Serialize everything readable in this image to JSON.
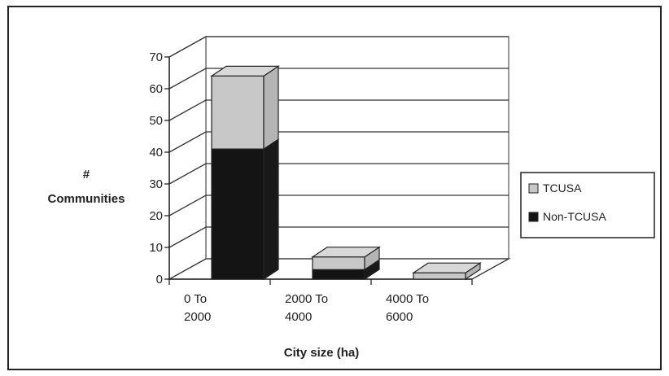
{
  "chart_data": {
    "type": "bar",
    "stacked": true,
    "three_d": true,
    "categories": [
      [
        "0 To",
        "2000"
      ],
      [
        "2000 To",
        "4000"
      ],
      [
        "4000 To",
        "6000"
      ]
    ],
    "series": [
      {
        "name": "Non-TCUSA",
        "values": [
          41,
          3,
          0
        ],
        "color": "#141414"
      },
      {
        "name": "TCUSA",
        "values": [
          23,
          4,
          2
        ],
        "color": "#c8c8c8"
      }
    ],
    "title": "",
    "xlabel": "City size (ha)",
    "ylabel": [
      "#",
      "Communities"
    ],
    "ylim": [
      0,
      70
    ],
    "yticks": [
      0,
      10,
      20,
      30,
      40,
      50,
      60,
      70
    ],
    "grid": true,
    "legend_position": "right"
  }
}
